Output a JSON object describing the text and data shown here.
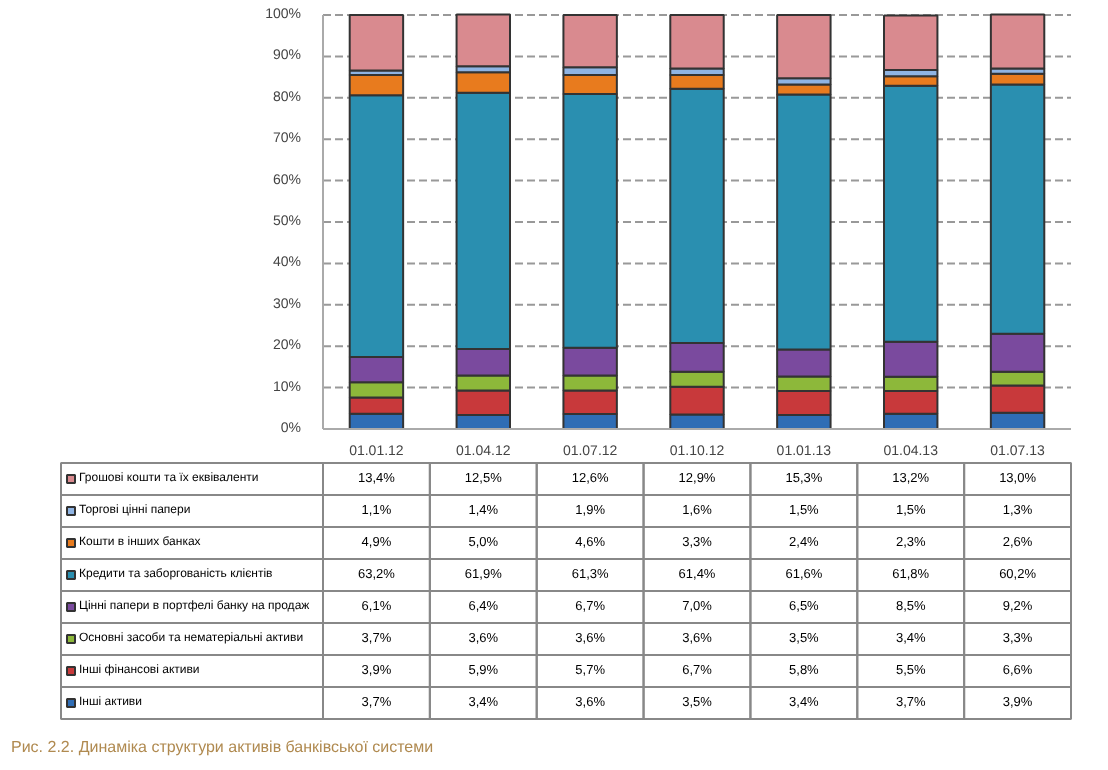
{
  "chart_data": {
    "type": "bar",
    "stacked": true,
    "categories": [
      "01.01.12",
      "01.04.12",
      "01.07.12",
      "01.10.12",
      "01.01.13",
      "01.04.13",
      "01.07.13"
    ],
    "ylim": [
      0,
      100
    ],
    "yticks": [
      {
        "value": 0,
        "label": "0%"
      },
      {
        "value": 10,
        "label": "10%"
      },
      {
        "value": 20,
        "label": "20%"
      },
      {
        "value": 30,
        "label": "30%"
      },
      {
        "value": 40,
        "label": "40%"
      },
      {
        "value": 50,
        "label": "50%"
      },
      {
        "value": 60,
        "label": "60%"
      },
      {
        "value": 70,
        "label": "70%"
      },
      {
        "value": 80,
        "label": "80%"
      },
      {
        "value": 90,
        "label": "90%"
      },
      {
        "value": 100,
        "label": "100%"
      }
    ],
    "grid": "y",
    "legend": "bottom",
    "series": [
      {
        "name": "Інші активи",
        "color": "#2f6db5",
        "values": [
          3.7,
          3.4,
          3.6,
          3.5,
          3.4,
          3.7,
          3.9
        ],
        "value_labels": [
          "3,7%",
          "3,4%",
          "3,6%",
          "3,5%",
          "3,4%",
          "3,7%",
          "3,9%"
        ]
      },
      {
        "name": "Інші фінансові активи",
        "color": "#c8393b",
        "values": [
          3.9,
          5.9,
          5.7,
          6.7,
          5.8,
          5.5,
          6.6
        ],
        "value_labels": [
          "3,9%",
          "5,9%",
          "5,7%",
          "6,7%",
          "5,8%",
          "5,5%",
          "6,6%"
        ]
      },
      {
        "name": "Основні засоби та нематеріальні активи",
        "color": "#8db83a",
        "values": [
          3.7,
          3.6,
          3.6,
          3.6,
          3.5,
          3.4,
          3.3
        ],
        "value_labels": [
          "3,7%",
          "3,6%",
          "3,6%",
          "3,6%",
          "3,5%",
          "3,4%",
          "3,3%"
        ]
      },
      {
        "name": "Цінні папери в портфелі банку на продаж",
        "color": "#7a4a9e",
        "values": [
          6.1,
          6.4,
          6.7,
          7.0,
          6.5,
          8.5,
          9.2
        ],
        "value_labels": [
          "6,1%",
          "6,4%",
          "6,7%",
          "7,0%",
          "6,5%",
          "8,5%",
          "9,2%"
        ]
      },
      {
        "name": "Кредити та заборгованість клієнтів",
        "color": "#2a8fb0",
        "values": [
          63.2,
          61.9,
          61.3,
          61.4,
          61.6,
          61.8,
          60.2
        ],
        "value_labels": [
          "63,2%",
          "61,9%",
          "61,3%",
          "61,4%",
          "61,6%",
          "61,8%",
          "60,2%"
        ]
      },
      {
        "name": "Кошти в інших банках",
        "color": "#e87b1e",
        "values": [
          4.9,
          5.0,
          4.6,
          3.3,
          2.4,
          2.3,
          2.6
        ],
        "value_labels": [
          "4,9%",
          "5,0%",
          "4,6%",
          "3,3%",
          "2,4%",
          "2,3%",
          "2,6%"
        ]
      },
      {
        "name": "Торгові цінні папери",
        "color": "#8fb4e3",
        "values": [
          1.1,
          1.4,
          1.9,
          1.6,
          1.5,
          1.5,
          1.3
        ],
        "value_labels": [
          "1,1%",
          "1,4%",
          "1,9%",
          "1,6%",
          "1,5%",
          "1,5%",
          "1,3%"
        ]
      },
      {
        "name": "Грошові кошти та їх еквіваленти",
        "color": "#d98a8f",
        "values": [
          13.4,
          12.5,
          12.6,
          12.9,
          15.3,
          13.2,
          13.0
        ],
        "value_labels": [
          "13,4%",
          "12,5%",
          "12,6%",
          "12,9%",
          "15,3%",
          "13,2%",
          "13,0%"
        ]
      }
    ],
    "annotations": [
      "Рис. 2.2. Динаміка структури активів банківської системи"
    ]
  }
}
